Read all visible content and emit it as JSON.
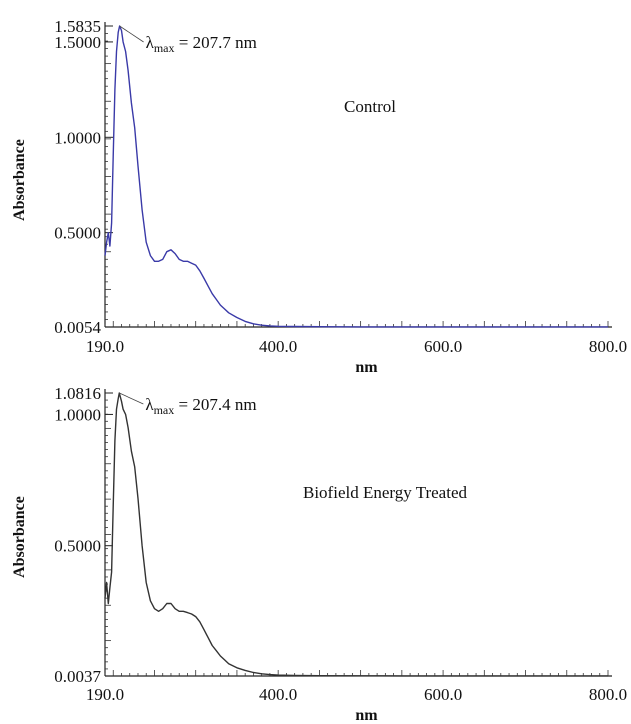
{
  "chart_data": [
    {
      "type": "line",
      "note": "Control",
      "xlabel": "nm",
      "ylabel": "Absorbance",
      "xlim": [
        190,
        800
      ],
      "ylim": [
        0.0054,
        1.5835
      ],
      "x_ticks": [
        "190.0",
        "400.0",
        "600.0",
        "800.0"
      ],
      "y_ticks": [
        "0.0054",
        "0.5000",
        "1.0000",
        "1.5000",
        "1.5835"
      ],
      "annotation": {
        "prefix": "λ",
        "sub": "max",
        "text": " = 207.7 nm",
        "x": 207.7,
        "y": 1.5835
      },
      "color": "#3a3aa8",
      "series": [
        {
          "x": [
            190,
            192,
            194,
            196,
            198,
            200,
            202,
            204,
            206,
            207.7,
            210,
            212,
            215,
            218,
            222,
            226,
            230,
            235,
            240,
            245,
            250,
            255,
            260,
            265,
            270,
            275,
            280,
            285,
            290,
            295,
            300,
            305,
            310,
            315,
            320,
            325,
            330,
            335,
            340,
            350,
            360,
            370,
            380,
            390,
            400,
            420,
            450,
            500,
            550,
            600,
            700,
            800
          ],
          "y": [
            0.38,
            0.45,
            0.5,
            0.43,
            0.55,
            0.9,
            1.25,
            1.45,
            1.55,
            1.5835,
            1.56,
            1.5,
            1.45,
            1.35,
            1.18,
            1.05,
            0.85,
            0.62,
            0.45,
            0.38,
            0.35,
            0.35,
            0.36,
            0.4,
            0.41,
            0.39,
            0.36,
            0.35,
            0.35,
            0.34,
            0.33,
            0.3,
            0.26,
            0.22,
            0.18,
            0.15,
            0.12,
            0.1,
            0.08,
            0.055,
            0.035,
            0.022,
            0.015,
            0.011,
            0.009,
            0.008,
            0.007,
            0.006,
            0.006,
            0.006,
            0.006,
            0.006
          ]
        }
      ]
    },
    {
      "type": "line",
      "note": "Biofield Energy Treated",
      "xlabel": "nm",
      "ylabel": "Absorbance",
      "xlim": [
        190,
        800
      ],
      "ylim": [
        0.0037,
        1.0816
      ],
      "x_ticks": [
        "190.0",
        "400.0",
        "600.0",
        "800.0"
      ],
      "y_ticks": [
        "0.0037",
        "0.5000",
        "1.0000",
        "1.0816"
      ],
      "annotation": {
        "prefix": "λ",
        "sub": "max",
        "text": " = 207.4 nm",
        "x": 207.4,
        "y": 1.0816
      },
      "color": "#333333",
      "series": [
        {
          "x": [
            190,
            192,
            194,
            196,
            198,
            200,
            202,
            204,
            206,
            207.4,
            210,
            212,
            215,
            218,
            222,
            226,
            230,
            235,
            240,
            245,
            250,
            255,
            260,
            265,
            270,
            275,
            280,
            285,
            290,
            295,
            300,
            305,
            310,
            315,
            320,
            325,
            330,
            335,
            340,
            350,
            360,
            370,
            380,
            390,
            400,
            420,
            450,
            500,
            550,
            600,
            700,
            800
          ],
          "y": [
            0.3,
            0.36,
            0.28,
            0.34,
            0.4,
            0.65,
            0.9,
            1.02,
            1.06,
            1.0816,
            1.05,
            1.02,
            1.0,
            0.95,
            0.86,
            0.8,
            0.68,
            0.5,
            0.36,
            0.29,
            0.26,
            0.25,
            0.26,
            0.28,
            0.28,
            0.26,
            0.25,
            0.25,
            0.245,
            0.24,
            0.23,
            0.21,
            0.18,
            0.15,
            0.12,
            0.1,
            0.08,
            0.065,
            0.05,
            0.035,
            0.025,
            0.017,
            0.012,
            0.009,
            0.007,
            0.006,
            0.005,
            0.0045,
            0.004,
            0.004,
            0.004,
            0.004
          ]
        }
      ]
    }
  ]
}
